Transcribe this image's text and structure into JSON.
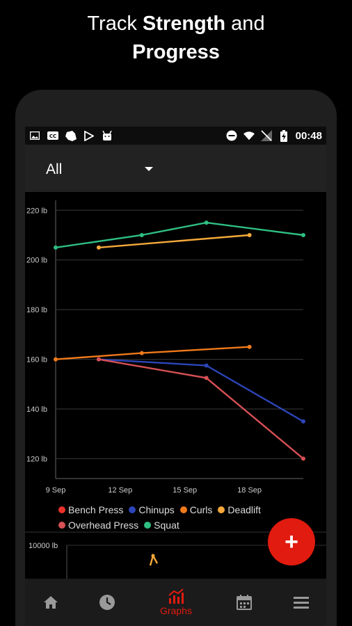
{
  "headline": {
    "line1_prefix": "Track ",
    "line1_bold": "Strength",
    "line1_suffix": " and",
    "line2_bold": "Progress"
  },
  "status_bar": {
    "time": "00:48",
    "left_icons": [
      "image-icon",
      "cc-icon",
      "notification-icon",
      "play-store-icon",
      "android-icon"
    ],
    "right_icons": [
      "do-not-disturb-icon",
      "wifi-icon",
      "no-signal-icon",
      "battery-charging-icon"
    ]
  },
  "filter": {
    "selected": "All"
  },
  "chart_data": [
    {
      "type": "line",
      "x_ticks": [
        "9 Sep",
        "12 Sep",
        "15 Sep",
        "18 Sep"
      ],
      "y_ticks": [
        "120 lb",
        "140 lb",
        "160 lb",
        "180 lb",
        "200 lb",
        "220 lb"
      ],
      "xlim": [
        9,
        20.5
      ],
      "ylim": [
        112,
        224
      ],
      "grid": true,
      "legend_position": "bottom",
      "series": [
        {
          "name": "Bench Press",
          "color": "#e8322a",
          "points": []
        },
        {
          "name": "Chinups",
          "color": "#2c45b8",
          "points": [
            [
              11,
              160
            ],
            [
              16,
              157.5
            ],
            [
              20.5,
              135
            ]
          ]
        },
        {
          "name": "Curls",
          "color": "#f07a1a",
          "points": [
            [
              9,
              160
            ],
            [
              13,
              162.5
            ],
            [
              18,
              165
            ]
          ]
        },
        {
          "name": "Deadlift",
          "color": "#f5a93a",
          "points": [
            [
              11,
              205
            ],
            [
              18,
              210
            ]
          ]
        },
        {
          "name": "Overhead Press",
          "color": "#d65055",
          "points": [
            [
              11,
              160
            ],
            [
              16,
              152.5
            ],
            [
              20.5,
              120
            ]
          ]
        },
        {
          "name": "Squat",
          "color": "#2fbf82",
          "points": [
            [
              9,
              205
            ],
            [
              13,
              210
            ],
            [
              16,
              215
            ],
            [
              20.5,
              210
            ]
          ]
        }
      ]
    },
    {
      "type": "line",
      "y_ticks": [
        "10000 lb"
      ],
      "grid": true
    }
  ],
  "fab": {
    "label": "+"
  },
  "nav": {
    "items": [
      {
        "name": "home-nav",
        "icon": "home-icon",
        "label": ""
      },
      {
        "name": "history-nav",
        "icon": "clock-icon",
        "label": ""
      },
      {
        "name": "graphs-nav",
        "icon": "graphs-icon",
        "label": "Graphs",
        "active": true
      },
      {
        "name": "calendar-nav",
        "icon": "calendar-icon",
        "label": ""
      },
      {
        "name": "menu-nav",
        "icon": "menu-icon",
        "label": ""
      }
    ]
  },
  "colors": {
    "accent": "#e11b0f",
    "nav_inactive": "#9a9a9a"
  }
}
